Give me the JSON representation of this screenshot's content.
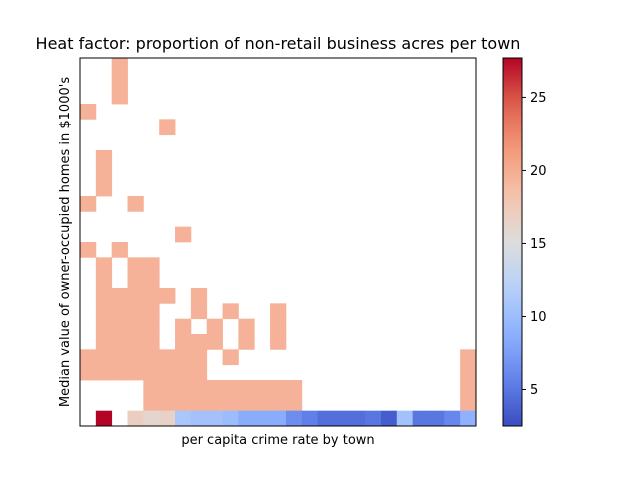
{
  "chart_data": {
    "type": "heatmap",
    "title": "Heat factor: proportion of non-retail business acres per town",
    "xlabel": "per capita crime rate by town",
    "ylabel": "Median value of owner-occupied homes in $1000's",
    "x_ticks": "none",
    "y_ticks": "none",
    "grid": false,
    "legend": "colorbar-right",
    "colormap": "coolwarm",
    "colorbar": {
      "vmin": 2.5,
      "vmax": 27.7,
      "ticks": [
        5,
        10,
        15,
        20,
        25
      ]
    },
    "n_cols": 25,
    "n_rows": 24,
    "cells": [
      {
        "col": 2,
        "row": 0,
        "value": 19.6
      },
      {
        "col": 2,
        "row": 1,
        "value": 19.6
      },
      {
        "col": 2,
        "row": 2,
        "value": 19.6
      },
      {
        "col": 0,
        "row": 3,
        "value": 19.6
      },
      {
        "col": 5,
        "row": 4,
        "value": 19.6
      },
      {
        "col": 1,
        "row": 6,
        "value": 19.6
      },
      {
        "col": 1,
        "row": 7,
        "value": 19.6
      },
      {
        "col": 1,
        "row": 8,
        "value": 19.6
      },
      {
        "col": 0,
        "row": 9,
        "value": 19.6
      },
      {
        "col": 3,
        "row": 9,
        "value": 19.6
      },
      {
        "col": 6,
        "row": 11,
        "value": 19.6
      },
      {
        "col": 0,
        "row": 12,
        "value": 19.6
      },
      {
        "col": 2,
        "row": 12,
        "value": 19.6
      },
      {
        "col": 1,
        "row": 13,
        "value": 19.6
      },
      {
        "col": 3,
        "row": 13,
        "value": 19.6
      },
      {
        "col": 4,
        "row": 13,
        "value": 19.6
      },
      {
        "col": 1,
        "row": 14,
        "value": 19.6
      },
      {
        "col": 3,
        "row": 14,
        "value": 19.6
      },
      {
        "col": 4,
        "row": 14,
        "value": 19.6
      },
      {
        "col": 1,
        "row": 15,
        "value": 19.6
      },
      {
        "col": 2,
        "row": 15,
        "value": 19.6
      },
      {
        "col": 3,
        "row": 15,
        "value": 19.6
      },
      {
        "col": 4,
        "row": 15,
        "value": 19.6
      },
      {
        "col": 5,
        "row": 15,
        "value": 19.6
      },
      {
        "col": 7,
        "row": 15,
        "value": 19.6
      },
      {
        "col": 1,
        "row": 16,
        "value": 19.6
      },
      {
        "col": 2,
        "row": 16,
        "value": 19.6
      },
      {
        "col": 3,
        "row": 16,
        "value": 19.6
      },
      {
        "col": 4,
        "row": 16,
        "value": 19.6
      },
      {
        "col": 7,
        "row": 16,
        "value": 19.6
      },
      {
        "col": 9,
        "row": 16,
        "value": 19.6
      },
      {
        "col": 12,
        "row": 16,
        "value": 19.6
      },
      {
        "col": 1,
        "row": 17,
        "value": 19.6
      },
      {
        "col": 2,
        "row": 17,
        "value": 19.6
      },
      {
        "col": 3,
        "row": 17,
        "value": 19.6
      },
      {
        "col": 4,
        "row": 17,
        "value": 19.6
      },
      {
        "col": 6,
        "row": 17,
        "value": 19.6
      },
      {
        "col": 8,
        "row": 17,
        "value": 19.6
      },
      {
        "col": 10,
        "row": 17,
        "value": 19.6
      },
      {
        "col": 12,
        "row": 17,
        "value": 19.6
      },
      {
        "col": 1,
        "row": 18,
        "value": 19.6
      },
      {
        "col": 2,
        "row": 18,
        "value": 19.6
      },
      {
        "col": 3,
        "row": 18,
        "value": 19.6
      },
      {
        "col": 4,
        "row": 18,
        "value": 19.6
      },
      {
        "col": 6,
        "row": 18,
        "value": 19.6
      },
      {
        "col": 7,
        "row": 18,
        "value": 19.6
      },
      {
        "col": 8,
        "row": 18,
        "value": 19.6
      },
      {
        "col": 10,
        "row": 18,
        "value": 19.6
      },
      {
        "col": 12,
        "row": 18,
        "value": 19.6
      },
      {
        "col": 0,
        "row": 19,
        "value": 19.6
      },
      {
        "col": 1,
        "row": 19,
        "value": 19.6
      },
      {
        "col": 2,
        "row": 19,
        "value": 19.6
      },
      {
        "col": 3,
        "row": 19,
        "value": 19.6
      },
      {
        "col": 4,
        "row": 19,
        "value": 19.6
      },
      {
        "col": 5,
        "row": 19,
        "value": 19.6
      },
      {
        "col": 6,
        "row": 19,
        "value": 19.6
      },
      {
        "col": 7,
        "row": 19,
        "value": 19.6
      },
      {
        "col": 9,
        "row": 19,
        "value": 19.6
      },
      {
        "col": 24,
        "row": 19,
        "value": 19.6
      },
      {
        "col": 0,
        "row": 20,
        "value": 19.6
      },
      {
        "col": 1,
        "row": 20,
        "value": 19.6
      },
      {
        "col": 2,
        "row": 20,
        "value": 19.6
      },
      {
        "col": 3,
        "row": 20,
        "value": 19.6
      },
      {
        "col": 4,
        "row": 20,
        "value": 19.6
      },
      {
        "col": 5,
        "row": 20,
        "value": 19.6
      },
      {
        "col": 6,
        "row": 20,
        "value": 19.6
      },
      {
        "col": 7,
        "row": 20,
        "value": 19.6
      },
      {
        "col": 24,
        "row": 20,
        "value": 19.6
      },
      {
        "col": 4,
        "row": 21,
        "value": 19.6
      },
      {
        "col": 5,
        "row": 21,
        "value": 19.6
      },
      {
        "col": 6,
        "row": 21,
        "value": 19.6
      },
      {
        "col": 7,
        "row": 21,
        "value": 19.6
      },
      {
        "col": 8,
        "row": 21,
        "value": 19.6
      },
      {
        "col": 9,
        "row": 21,
        "value": 19.6
      },
      {
        "col": 10,
        "row": 21,
        "value": 19.6
      },
      {
        "col": 11,
        "row": 21,
        "value": 19.6
      },
      {
        "col": 12,
        "row": 21,
        "value": 19.6
      },
      {
        "col": 13,
        "row": 21,
        "value": 19.6
      },
      {
        "col": 24,
        "row": 21,
        "value": 19.6
      },
      {
        "col": 4,
        "row": 22,
        "value": 19.6
      },
      {
        "col": 5,
        "row": 22,
        "value": 19.6
      },
      {
        "col": 6,
        "row": 22,
        "value": 19.6
      },
      {
        "col": 7,
        "row": 22,
        "value": 19.6
      },
      {
        "col": 8,
        "row": 22,
        "value": 19.6
      },
      {
        "col": 9,
        "row": 22,
        "value": 19.6
      },
      {
        "col": 10,
        "row": 22,
        "value": 19.6
      },
      {
        "col": 11,
        "row": 22,
        "value": 19.6
      },
      {
        "col": 12,
        "row": 22,
        "value": 19.6
      },
      {
        "col": 13,
        "row": 22,
        "value": 19.6
      },
      {
        "col": 24,
        "row": 22,
        "value": 19.6
      },
      {
        "col": 1,
        "row": 23,
        "value": 27.7
      },
      {
        "col": 3,
        "row": 23,
        "value": 17.0
      },
      {
        "col": 4,
        "row": 23,
        "value": 16.0
      },
      {
        "col": 5,
        "row": 23,
        "value": 16.5
      },
      {
        "col": 6,
        "row": 23,
        "value": 11.0
      },
      {
        "col": 7,
        "row": 23,
        "value": 10.5
      },
      {
        "col": 8,
        "row": 23,
        "value": 10.5
      },
      {
        "col": 9,
        "row": 23,
        "value": 10.0
      },
      {
        "col": 10,
        "row": 23,
        "value": 8.5
      },
      {
        "col": 11,
        "row": 23,
        "value": 8.5
      },
      {
        "col": 12,
        "row": 23,
        "value": 8.5
      },
      {
        "col": 13,
        "row": 23,
        "value": 6.5
      },
      {
        "col": 14,
        "row": 23,
        "value": 5.5
      },
      {
        "col": 15,
        "row": 23,
        "value": 4.5
      },
      {
        "col": 16,
        "row": 23,
        "value": 4.5
      },
      {
        "col": 17,
        "row": 23,
        "value": 4.5
      },
      {
        "col": 18,
        "row": 23,
        "value": 5.0
      },
      {
        "col": 19,
        "row": 23,
        "value": 3.5
      },
      {
        "col": 20,
        "row": 23,
        "value": 10.5
      },
      {
        "col": 21,
        "row": 23,
        "value": 5.0
      },
      {
        "col": 22,
        "row": 23,
        "value": 5.0
      },
      {
        "col": 23,
        "row": 23,
        "value": 6.0
      },
      {
        "col": 24,
        "row": 23,
        "value": 9.0
      }
    ]
  }
}
